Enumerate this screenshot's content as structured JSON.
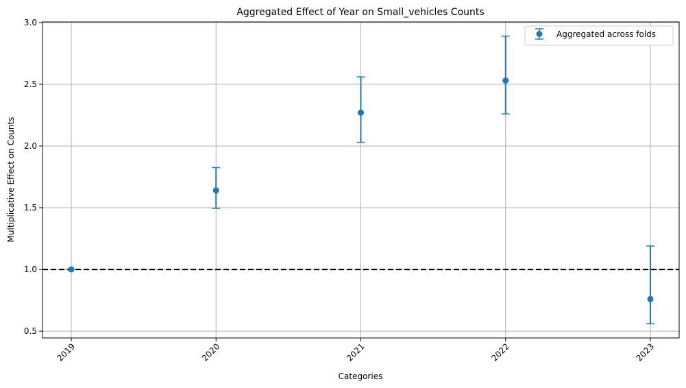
{
  "chart_data": {
    "type": "scatter",
    "title": "Aggregated Effect of Year on Small_vehicles Counts",
    "xlabel": "Categories",
    "ylabel": "Multiplicative Effect on Counts",
    "categories": [
      "2019",
      "2020",
      "2021",
      "2022",
      "2023"
    ],
    "series": [
      {
        "name": "Aggregated across folds",
        "values": [
          1.0,
          1.64,
          2.27,
          2.53,
          0.76
        ],
        "lower": [
          1.0,
          1.495,
          2.03,
          2.26,
          0.56
        ],
        "upper": [
          1.0,
          1.825,
          2.56,
          2.89,
          1.19
        ]
      }
    ],
    "yticks": [
      "0.5",
      "1.0",
      "1.5",
      "2.0",
      "2.5",
      "3.0"
    ],
    "ylim": [
      0.445,
      3.005
    ],
    "reference_line": 1.0,
    "grid": true,
    "legend_position": "upper right",
    "colors": {
      "series": "#1f77b4",
      "grid": "#b0b0b0",
      "reference": "#000000"
    }
  }
}
